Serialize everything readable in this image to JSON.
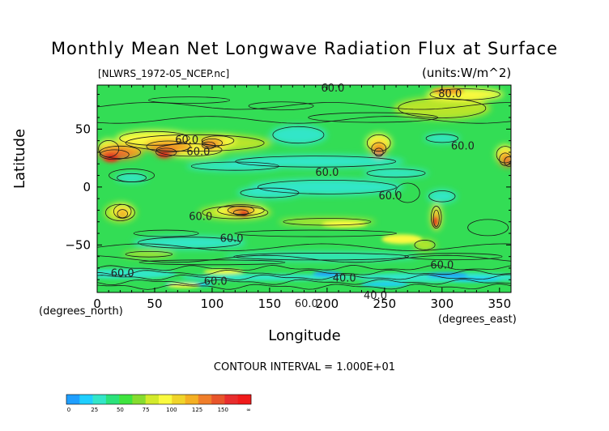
{
  "title": "Monthly Mean Net Longwave Radiation Flux at Surface",
  "filename": "[NLWRS_1972-05_NCEP.nc]",
  "units": "(units:W/m^2)",
  "xlabel": "Longitude",
  "ylabel": "Latitude",
  "x_note": "(degrees_east)",
  "y_note": "(degrees_north)",
  "contour_interval": "CONTOUR INTERVAL = 1.000E+01",
  "chart_data": {
    "type": "heatmap",
    "title": "Monthly Mean Net Longwave Radiation Flux at Surface",
    "xlabel": "Longitude",
    "ylabel": "Latitude",
    "xlim": [
      0,
      360
    ],
    "ylim": [
      -90,
      90
    ],
    "x_ticks": [
      "0",
      "50",
      "100",
      "150",
      "200",
      "250",
      "300",
      "350"
    ],
    "y_ticks": [
      "50",
      "0",
      "−50"
    ],
    "contour_labels": [
      {
        "text": "60.0",
        "lon": 205,
        "lat": 85
      },
      {
        "text": "80.0",
        "lon": 307,
        "lat": 80
      },
      {
        "text": "60.0",
        "lon": 78,
        "lat": 40
      },
      {
        "text": "60.0",
        "lon": 88,
        "lat": 30
      },
      {
        "text": "60.0",
        "lon": 318,
        "lat": 35
      },
      {
        "text": "60.0",
        "lon": 200,
        "lat": 12
      },
      {
        "text": "60.0",
        "lon": 255,
        "lat": -8
      },
      {
        "text": "60.0",
        "lon": 90,
        "lat": -26
      },
      {
        "text": "60.0",
        "lon": 117,
        "lat": -45
      },
      {
        "text": "60.0",
        "lon": 300,
        "lat": -68
      },
      {
        "text": "60.0",
        "lon": 22,
        "lat": -75
      },
      {
        "text": "60.0",
        "lon": 103,
        "lat": -82
      },
      {
        "text": "40.0",
        "lon": 215,
        "lat": -79
      },
      {
        "text": "40.0",
        "lon": 242,
        "lat": -94
      },
      {
        "text": "60.0",
        "lon": 182,
        "lat": -101
      }
    ],
    "colorbar": {
      "ticks": [
        "0",
        "25",
        "50",
        "75",
        "100",
        "125",
        "150",
        "∞"
      ],
      "colors": [
        "#1f9fff",
        "#1fcfff",
        "#33e6c8",
        "#2be27b",
        "#3fe43f",
        "#86dc2f",
        "#d3ea2b",
        "#fafa3f",
        "#f0d42a",
        "#f4b023",
        "#f07e2a",
        "#e8552a",
        "#e82d2d",
        "#f01a1a"
      ]
    },
    "field_colors": {
      "ocean_green": "#33dd55",
      "cyan": "#30e6c8",
      "mid_cyan": "#1fcfff",
      "blue": "#1f9fff",
      "yellow_green": "#b8e52c",
      "yellow": "#fafa3f",
      "orange": "#f0a020",
      "dark_orange": "#ea6a2a",
      "red": "#e0301c"
    }
  }
}
